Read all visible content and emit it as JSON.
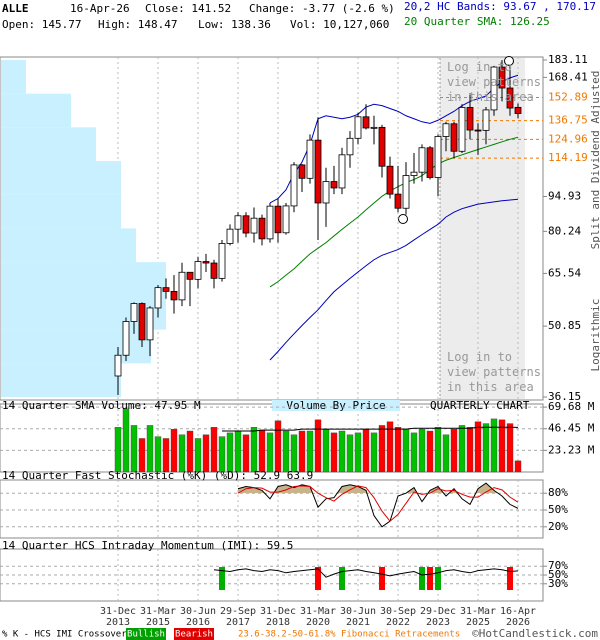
{
  "header": {
    "symbol": "ALLE",
    "date": "16-Apr-26",
    "close": "Close: 141.52",
    "change": "Change: -3.77 (-2.6 %)",
    "open": "Open: 145.77",
    "high": "High: 148.47",
    "low": "Low: 138.36",
    "volume": "Vol: 10,127,060",
    "bands": "20,2 HC Bands: 93.67 , 170.17",
    "sma": "20 Quarter SMA: 126.25"
  },
  "chart_data": [
    {
      "type": "candlestick",
      "log_scale": true,
      "ylim": [
        36.15,
        183.11
      ],
      "yticks": [
        36.15,
        50.85,
        65.54,
        80.24,
        94.93,
        168.41,
        183.11
      ],
      "categories": [
        "31-Dec 2013",
        null,
        null,
        null,
        null,
        "31-Mar 2015",
        null,
        null,
        null,
        null,
        "30-Jun 2016",
        null,
        null,
        null,
        null,
        "29-Sep 2017",
        null,
        null,
        null,
        null,
        "31-Dec 2018",
        null,
        null,
        null,
        null,
        "31-Mar 2020",
        null,
        null,
        null,
        null,
        "30-Jun 2021",
        null,
        null,
        null,
        null,
        "30-Sep 2022",
        null,
        null,
        null,
        null,
        "29-Dec 2023",
        null,
        null,
        null,
        null,
        "31-Mar 2025",
        null,
        null,
        null,
        null,
        "16-Apr 2026"
      ],
      "open": [
        40,
        44.2,
        52,
        56.7,
        47.6,
        55.5,
        61.2,
        60.1,
        57.7,
        65.9,
        63.7,
        69.4,
        68.9,
        64,
        75.7,
        81.1,
        86.5,
        79.6,
        85.5,
        77.4,
        90.6,
        79.7,
        90.7,
        110.5,
        103.6,
        124.5,
        92,
        102,
        98.9,
        116,
        125.6,
        139.3,
        132,
        132.4,
        109.8,
        96,
        89.7,
        105,
        106.7,
        120,
        104,
        126.7,
        134.7,
        118,
        145.7,
        130.7,
        130.5,
        144,
        177,
        160,
        145.77
      ],
      "high": [
        46,
        53,
        57,
        57,
        56,
        62,
        64,
        65,
        69,
        66,
        71,
        72,
        70,
        77,
        83,
        88,
        88,
        90,
        87,
        92,
        94,
        92,
        112,
        111,
        128,
        139,
        109,
        110,
        120,
        130,
        142,
        148,
        140,
        134,
        115,
        110,
        112,
        117,
        122,
        121,
        128,
        136,
        136,
        148,
        156,
        135,
        146,
        178,
        183,
        178,
        148.47
      ],
      "low": [
        36.5,
        43,
        49,
        46,
        44,
        53,
        58,
        54,
        56,
        56,
        61,
        66,
        61,
        63,
        75,
        76,
        78,
        76,
        75,
        76,
        76,
        79,
        88,
        97,
        101,
        77,
        82,
        96,
        96,
        109,
        122,
        131,
        122,
        104,
        94,
        88,
        87,
        101,
        102,
        103,
        95,
        118,
        114,
        117,
        125,
        116,
        122,
        140,
        150,
        140,
        138.36
      ],
      "close": [
        44.2,
        52,
        56.7,
        47.6,
        55.5,
        61.2,
        60.1,
        57.7,
        65.9,
        63.7,
        69.4,
        68.9,
        64,
        75.7,
        81.1,
        86.5,
        79.6,
        85.5,
        77.4,
        90.6,
        79.7,
        90.7,
        110.5,
        103.6,
        124.5,
        92,
        102,
        98.9,
        116,
        125.6,
        139.3,
        132,
        132.4,
        109.8,
        96,
        89.7,
        105,
        106.7,
        120,
        104,
        126.7,
        134.7,
        118,
        145.7,
        130.7,
        130.5,
        144,
        177,
        160,
        145.3,
        141.52
      ],
      "up_color": "#ffffff",
      "down_color": "#e00000",
      "series": [
        {
          "color": "#008000",
          "values": [
            null,
            null,
            null,
            null,
            null,
            null,
            null,
            null,
            null,
            null,
            null,
            null,
            null,
            null,
            null,
            null,
            null,
            null,
            null,
            61.4,
            63,
            65,
            67,
            69.5,
            72,
            74,
            76,
            78.5,
            81,
            83.5,
            86,
            89,
            92,
            95,
            97.5,
            99.5,
            101.5,
            103,
            105,
            108,
            111,
            113,
            114.5,
            116,
            117.5,
            119,
            120.5,
            122,
            123.5,
            125,
            126.25
          ]
        },
        {
          "color": "#0000c0",
          "values": [
            null,
            null,
            null,
            null,
            null,
            null,
            null,
            null,
            null,
            null,
            null,
            null,
            null,
            null,
            null,
            null,
            null,
            null,
            null,
            92,
            94,
            98,
            106,
            112,
            122,
            138,
            140,
            139,
            138,
            139,
            141,
            146,
            148,
            147,
            145,
            143,
            140,
            138,
            136,
            135,
            137,
            140,
            143,
            147,
            150,
            152,
            154,
            160,
            165,
            168,
            170.17
          ]
        },
        {
          "color": "#0000c0",
          "values": [
            null,
            null,
            null,
            null,
            null,
            null,
            null,
            null,
            null,
            null,
            null,
            null,
            null,
            null,
            null,
            null,
            null,
            null,
            null,
            43.2,
            45,
            47,
            49,
            51,
            53,
            55,
            57.5,
            60,
            62,
            64,
            66,
            68,
            70,
            71.5,
            72.5,
            73.5,
            75,
            77,
            79,
            81,
            83,
            86,
            88,
            89.5,
            90.5,
            91.5,
            92,
            92.5,
            93,
            93.3,
            93.67
          ]
        }
      ],
      "fib_levels": [
        114.19,
        124.96,
        136.75,
        152.89
      ],
      "fib_color": "#f07800",
      "volume_by_price": {
        "title": "Volume By Price",
        "bins": [
          36.15,
          42.5,
          50,
          58.8,
          69.2,
          81.4,
          95.7,
          112.6,
          132.4,
          155.7,
          183.11
        ],
        "values": [
          120,
          150,
          165,
          165,
          135,
          120,
          120,
          95,
          70,
          25
        ],
        "color": "#c8f0ff"
      },
      "locked_text": "Log in to view patterns in this area",
      "axis_note": "Split and Dividend Adjusted",
      "scale_note": "Logarithmic"
    },
    {
      "type": "bar",
      "title": "14 Quarter SMA Volume: 47.95 M",
      "chart_label": "QUARTERLY CHART",
      "ylim": [
        0,
        73
      ],
      "yticks": [
        {
          "value": 23.23,
          "label": "23.23 M"
        },
        {
          "value": 46.45,
          "label": "46.45 M"
        },
        {
          "value": 69.68,
          "label": "69.68 M"
        }
      ],
      "values": [
        48,
        68,
        50,
        36,
        50,
        38,
        36,
        46,
        40,
        44,
        36,
        40,
        48,
        38,
        42,
        44,
        40,
        48,
        45,
        42,
        55,
        44,
        40,
        44,
        44,
        56,
        46,
        42,
        44,
        40,
        42,
        46,
        42,
        50,
        54,
        48,
        46,
        42,
        46,
        44,
        48,
        40,
        46,
        50,
        48,
        54,
        52,
        57,
        56,
        52,
        12
      ],
      "up_color": "#00c000",
      "down_color": "#ff0000",
      "sma": {
        "color": "#000000",
        "values": [
          null,
          null,
          null,
          null,
          null,
          null,
          null,
          null,
          null,
          null,
          null,
          null,
          null,
          44,
          44,
          44,
          44,
          44,
          45,
          45,
          45,
          45,
          45,
          46,
          46,
          46,
          46,
          46,
          46,
          46,
          46,
          46,
          46,
          46,
          46,
          46,
          46,
          47,
          47,
          47,
          47,
          47,
          47,
          47,
          47,
          48,
          48,
          48,
          48,
          48,
          47.95
        ]
      }
    },
    {
      "type": "line",
      "title": "14 Quarter Fast Stochastic (%K) (%D): 52.9 63.9",
      "ylim": [
        0,
        100
      ],
      "yticks": [
        {
          "value": 20,
          "label": "20%"
        },
        {
          "value": 50,
          "label": "50%"
        },
        {
          "value": 80,
          "label": "80%"
        }
      ],
      "shade_color": "#c8b48c",
      "series": [
        {
          "color": "#000000",
          "values": [
            null,
            null,
            null,
            null,
            null,
            null,
            null,
            null,
            null,
            null,
            null,
            null,
            null,
            null,
            null,
            88,
            92,
            90,
            85,
            70,
            92,
            95,
            90,
            95,
            92,
            55,
            70,
            72,
            92,
            95,
            92,
            85,
            40,
            20,
            30,
            75,
            80,
            90,
            65,
            85,
            92,
            75,
            88,
            70,
            60,
            88,
            98,
            85,
            75,
            60,
            52.9
          ]
        },
        {
          "color": "#e00000",
          "values": [
            null,
            null,
            null,
            null,
            null,
            null,
            null,
            null,
            null,
            null,
            null,
            null,
            null,
            null,
            null,
            80,
            88,
            90,
            89,
            82,
            82,
            86,
            92,
            93,
            92,
            80,
            72,
            66,
            78,
            86,
            93,
            90,
            72,
            48,
            30,
            42,
            62,
            82,
            78,
            80,
            88,
            84,
            85,
            78,
            73,
            73,
            82,
            90,
            86,
            73,
            63.9
          ]
        }
      ]
    },
    {
      "type": "line",
      "title": "14 Quarter HCS Intraday Momentum (IMI): 59.5",
      "ylim": [
        0,
        100
      ],
      "yticks": [
        {
          "value": 30,
          "label": "30%"
        },
        {
          "value": 50,
          "label": "50%"
        },
        {
          "value": 70,
          "label": "70%"
        }
      ],
      "series": [
        {
          "color": "#000000",
          "values": [
            null,
            null,
            null,
            null,
            null,
            null,
            null,
            null,
            null,
            null,
            null,
            null,
            62,
            60,
            58,
            62,
            64,
            60,
            58,
            62,
            60,
            55,
            58,
            60,
            62,
            64,
            45,
            52,
            58,
            60,
            62,
            58,
            55,
            52,
            48,
            52,
            55,
            58,
            50,
            52,
            55,
            60,
            62,
            58,
            55,
            60,
            62,
            64,
            62,
            58,
            59.5
          ]
        }
      ],
      "signals": [
        null,
        null,
        null,
        null,
        null,
        null,
        null,
        null,
        null,
        null,
        null,
        null,
        null,
        "bullish",
        null,
        null,
        null,
        null,
        null,
        null,
        null,
        null,
        null,
        null,
        null,
        "bearish",
        null,
        null,
        "bullish",
        null,
        null,
        null,
        null,
        "bearish",
        null,
        null,
        null,
        null,
        "bullish",
        "bearish",
        "bullish",
        null,
        null,
        null,
        null,
        null,
        null,
        null,
        null,
        "bearish",
        null
      ],
      "signal_colors": {
        "bullish": "#00b000",
        "bearish": "#ff0000"
      }
    }
  ],
  "footer": {
    "crossover": "% K - HCS IMI Crossover:",
    "bullish": "Bullish",
    "bearish": "Bearish",
    "fib": "23.6-38.2-50-61.8% Fibonacci Retracements",
    "copyright": "©HotCandlestick.com"
  }
}
